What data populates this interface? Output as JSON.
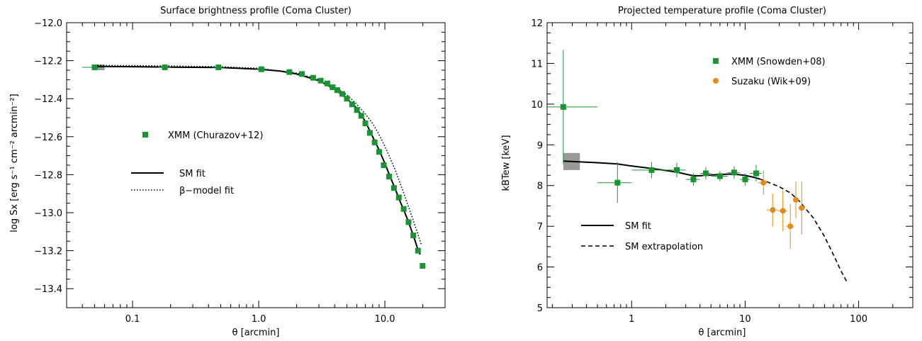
{
  "chart_data": [
    {
      "type": "scatter",
      "title": "Surface brightness profile (Coma Cluster)",
      "xlabel": "θ [arcmin]",
      "ylabel": "log Sx [erg s⁻¹ cm⁻² arcmin⁻²]",
      "x_scale": "log",
      "xlim": [
        0.03,
        30
      ],
      "ylim": [
        -13.5,
        -12.0
      ],
      "x_ticks": [
        {
          "v": 0.1,
          "label": "0.1"
        },
        {
          "v": 1.0,
          "label": "1.0"
        },
        {
          "v": 10.0,
          "label": "10.0"
        }
      ],
      "y_ticks": [
        {
          "v": -12.0,
          "label": "−12.0"
        },
        {
          "v": -12.2,
          "label": "−12.2"
        },
        {
          "v": -12.4,
          "label": "−12.4"
        },
        {
          "v": -12.6,
          "label": "−12.6"
        },
        {
          "v": -12.8,
          "label": "−12.8"
        },
        {
          "v": -13.0,
          "label": "−13.0"
        },
        {
          "v": -13.2,
          "label": "−13.2"
        },
        {
          "v": -13.4,
          "label": "−13.4"
        }
      ],
      "legend": [
        {
          "label": "XMM (Churazov+12)",
          "style": "marker",
          "color": "#1a9432"
        },
        {
          "label": "SM fit",
          "style": "solid",
          "color": "#000000"
        },
        {
          "label": "β−model fit",
          "style": "dotted",
          "color": "#000000"
        }
      ],
      "legend_placement": "center-left",
      "shaded_box": {
        "x": [
          0.05,
          0.06
        ],
        "y": [
          -12.25,
          -12.22
        ],
        "color": "#999999"
      },
      "series": [
        {
          "name": "XMM (Churazov+12)",
          "kind": "points",
          "color": "#1a9432",
          "x": [
            0.05,
            0.18,
            0.48,
            1.05,
            1.75,
            2.2,
            2.7,
            3.1,
            3.5,
            3.85,
            4.2,
            4.6,
            5.0,
            5.5,
            6.0,
            6.5,
            7.0,
            7.6,
            8.3,
            9.0,
            9.8,
            10.8,
            11.8,
            12.9,
            14.1,
            15.4,
            16.8,
            18.3,
            19.9
          ],
          "y": [
            -12.235,
            -12.235,
            -12.235,
            -12.245,
            -12.26,
            -12.27,
            -12.29,
            -12.305,
            -12.32,
            -12.34,
            -12.355,
            -12.375,
            -12.4,
            -12.43,
            -12.46,
            -12.49,
            -12.53,
            -12.58,
            -12.63,
            -12.68,
            -12.75,
            -12.81,
            -12.87,
            -12.92,
            -12.98,
            -13.05,
            -13.12,
            -13.2,
            -13.28
          ],
          "xerr": [
            0.01,
            0.02,
            0.05,
            0.1,
            0.1,
            0.12,
            0.13,
            0.15,
            0.16,
            0.17,
            0.19,
            0.2,
            0.22,
            0.24,
            0.25,
            0.27,
            0.3,
            0.32,
            0.35,
            0.38,
            0.4,
            0.45,
            0.48,
            0.52,
            0.56,
            0.6,
            0.65,
            0.7,
            0.75
          ]
        },
        {
          "name": "SM fit",
          "kind": "line",
          "style": "solid",
          "color": "#000000",
          "x": [
            0.05,
            0.1,
            0.2,
            0.5,
            1.0,
            1.5,
            2.0,
            3.0,
            4.0,
            5.0,
            6.0,
            7.0,
            8.0,
            9.0,
            10.0,
            11.0,
            12.0,
            13.0,
            14.0,
            15.0,
            16.0,
            17.0,
            18.0,
            19.0
          ],
          "y": [
            -12.23,
            -12.232,
            -12.234,
            -12.236,
            -12.245,
            -12.255,
            -12.27,
            -12.305,
            -12.35,
            -12.4,
            -12.45,
            -12.52,
            -12.6,
            -12.67,
            -12.74,
            -12.81,
            -12.87,
            -12.93,
            -12.98,
            -13.03,
            -13.08,
            -13.13,
            -13.18,
            -13.22
          ]
        },
        {
          "name": "β−model fit",
          "kind": "line",
          "style": "dotted",
          "color": "#000000",
          "x": [
            0.05,
            0.1,
            0.2,
            0.5,
            1.0,
            2.0,
            3.0,
            4.0,
            5.0,
            6.0,
            7.0,
            8.0,
            9.0,
            10.0,
            12.0,
            14.0,
            16.0,
            18.0,
            19.5
          ],
          "y": [
            -12.225,
            -12.226,
            -12.228,
            -12.232,
            -12.24,
            -12.265,
            -12.3,
            -12.34,
            -12.38,
            -12.43,
            -12.48,
            -12.53,
            -12.59,
            -12.65,
            -12.77,
            -12.89,
            -13.0,
            -13.1,
            -13.17
          ]
        }
      ]
    },
    {
      "type": "scatter",
      "title": "Projected temperature profile (Coma Cluster)",
      "xlabel": "θ [arcmin]",
      "ylabel": "kBTew [keV]",
      "x_scale": "log",
      "xlim": [
        0.18,
        300
      ],
      "ylim": [
        5,
        12
      ],
      "x_ticks": [
        {
          "v": 1,
          "label": "1"
        },
        {
          "v": 10,
          "label": "10"
        },
        {
          "v": 100,
          "label": "100"
        }
      ],
      "y_ticks": [
        {
          "v": 5,
          "label": "5"
        },
        {
          "v": 6,
          "label": "6"
        },
        {
          "v": 7,
          "label": "7"
        },
        {
          "v": 8,
          "label": "8"
        },
        {
          "v": 9,
          "label": "9"
        },
        {
          "v": 10,
          "label": "10"
        },
        {
          "v": 11,
          "label": "11"
        },
        {
          "v": 12,
          "label": "12"
        }
      ],
      "legend": [
        {
          "label": "XMM (Snowden+08)",
          "style": "marker",
          "color": "#1a9432"
        },
        {
          "label": "Suzaku (Wik+09)",
          "style": "circle",
          "color": "#e38b17"
        },
        {
          "label": "SM fit",
          "style": "solid",
          "color": "#000000"
        },
        {
          "label": "SM extrapolation",
          "style": "dashed",
          "color": "#000000"
        }
      ],
      "legend_placement": "top-center",
      "shaded_box": {
        "x": [
          0.25,
          0.35
        ],
        "y": [
          8.38,
          8.8
        ],
        "color": "#999999"
      },
      "series": [
        {
          "name": "XMM (Snowden+08)",
          "kind": "points",
          "color": "#1a9432",
          "x": [
            0.25,
            0.75,
            1.5,
            2.5,
            3.5,
            4.5,
            6.0,
            8.0,
            10.0,
            12.5
          ],
          "xlo": [
            0.18,
            0.5,
            1.0,
            2.0,
            3.0,
            4.0,
            5.0,
            7.0,
            9.0,
            11.0
          ],
          "xhi": [
            0.5,
            1.0,
            2.0,
            3.0,
            4.0,
            5.0,
            7.0,
            9.0,
            11.0,
            14.0
          ],
          "y": [
            9.93,
            8.07,
            8.38,
            8.38,
            8.15,
            8.3,
            8.23,
            8.32,
            8.15,
            8.3
          ],
          "yerr": [
            1.4,
            0.5,
            0.2,
            0.18,
            0.15,
            0.15,
            0.12,
            0.15,
            0.15,
            0.2
          ]
        },
        {
          "name": "Suzaku (Wik+09)",
          "kind": "points",
          "color": "#e38b17",
          "x": [
            14.5,
            17.5,
            21.5,
            25.0,
            28.0,
            31.5
          ],
          "xlo": [
            13.0,
            15.5,
            19.5,
            23.0,
            26.5,
            29.5
          ],
          "xhi": [
            16.0,
            19.5,
            23.5,
            27.0,
            29.5,
            33.5
          ],
          "y": [
            8.07,
            7.4,
            7.38,
            7.0,
            7.65,
            7.45
          ],
          "yerr": [
            0.3,
            0.4,
            0.5,
            0.55,
            0.45,
            0.65
          ]
        },
        {
          "name": "SM fit",
          "kind": "line",
          "style": "solid",
          "color": "#000000",
          "x": [
            0.25,
            0.5,
            0.75,
            1.0,
            1.5,
            2.0,
            2.5,
            3.0,
            3.5,
            4.0,
            5.0,
            6.0,
            7.0,
            8.0,
            10.0,
            12.0,
            13.5
          ],
          "y": [
            8.6,
            8.56,
            8.53,
            8.48,
            8.42,
            8.37,
            8.33,
            8.28,
            8.24,
            8.24,
            8.26,
            8.27,
            8.28,
            8.28,
            8.25,
            8.2,
            8.16
          ]
        },
        {
          "name": "SM extrapolation",
          "kind": "line",
          "style": "dashed",
          "color": "#000000",
          "x": [
            13.5,
            16,
            20,
            25,
            30,
            40,
            50,
            60,
            70,
            80
          ],
          "y": [
            8.16,
            8.08,
            7.97,
            7.82,
            7.62,
            7.2,
            6.75,
            6.3,
            5.9,
            5.6
          ]
        }
      ]
    }
  ]
}
